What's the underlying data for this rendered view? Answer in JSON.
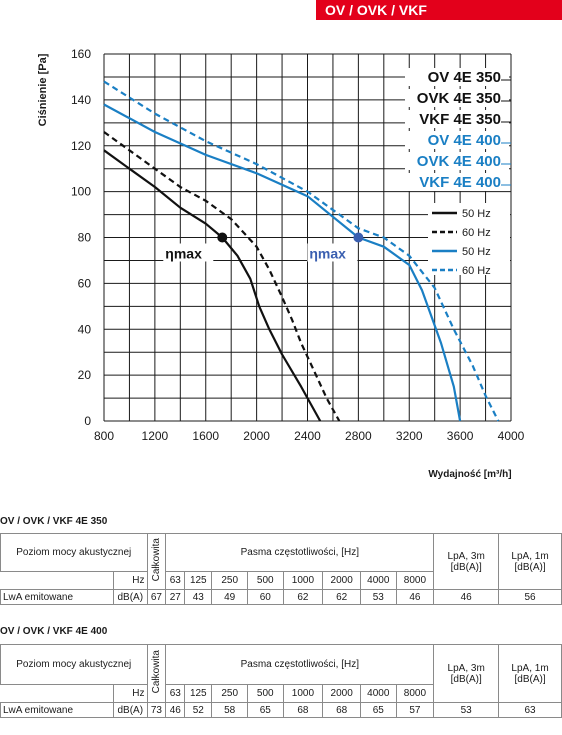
{
  "header": {
    "label": "OV / OVK / VKF"
  },
  "chart_data": {
    "type": "line",
    "xlabel": "Wydajność [m³/h]",
    "ylabel": "Ciśnienie [Pa]",
    "xlim": [
      800,
      4000
    ],
    "ylim": [
      0,
      160
    ],
    "x_ticks": [
      800,
      1200,
      1600,
      2000,
      2400,
      2800,
      3200,
      3600,
      4000
    ],
    "y_ticks": [
      0,
      20,
      40,
      60,
      80,
      100,
      120,
      140,
      160
    ],
    "grid": true,
    "model_labels": [
      {
        "text": "OV 4E 350",
        "color": "#111111"
      },
      {
        "text": "OVK 4E 350",
        "color": "#111111"
      },
      {
        "text": "VKF 4E 350",
        "color": "#111111"
      },
      {
        "text": "OV 4E 400",
        "color": "#1a7fc4"
      },
      {
        "text": "OVK 4E 400",
        "color": "#1a7fc4"
      },
      {
        "text": "VKF 4E 400",
        "color": "#1a7fc4"
      }
    ],
    "legend": {
      "placement": "right",
      "entries": [
        {
          "label": "50 Hz",
          "color": "#111111",
          "dashed": false
        },
        {
          "label": "60 Hz",
          "color": "#111111",
          "dashed": true
        },
        {
          "label": "50 Hz",
          "color": "#1a7fc4",
          "dashed": false
        },
        {
          "label": "60 Hz",
          "color": "#1a7fc4",
          "dashed": true
        }
      ]
    },
    "series": [
      {
        "color": "#111111",
        "dashed": false,
        "points": [
          [
            800,
            118
          ],
          [
            1000,
            110
          ],
          [
            1200,
            102
          ],
          [
            1400,
            93
          ],
          [
            1600,
            86
          ],
          [
            1730,
            80
          ],
          [
            1850,
            72
          ],
          [
            1950,
            62
          ],
          [
            2020,
            50
          ],
          [
            2100,
            40
          ],
          [
            2200,
            29
          ],
          [
            2350,
            15
          ],
          [
            2500,
            0
          ]
        ]
      },
      {
        "color": "#111111",
        "dashed": true,
        "points": [
          [
            800,
            126
          ],
          [
            1000,
            118
          ],
          [
            1200,
            110
          ],
          [
            1400,
            102
          ],
          [
            1600,
            96
          ],
          [
            1800,
            88
          ],
          [
            1900,
            82
          ],
          [
            2000,
            76
          ],
          [
            2100,
            66
          ],
          [
            2200,
            54
          ],
          [
            2280,
            44
          ],
          [
            2350,
            34
          ],
          [
            2450,
            22
          ],
          [
            2550,
            10
          ],
          [
            2650,
            0
          ]
        ]
      },
      {
        "color": "#1a7fc4",
        "dashed": false,
        "points": [
          [
            800,
            138
          ],
          [
            1200,
            126
          ],
          [
            1600,
            116
          ],
          [
            2000,
            108
          ],
          [
            2400,
            98
          ],
          [
            2800,
            80
          ],
          [
            3000,
            76
          ],
          [
            3200,
            68
          ],
          [
            3300,
            57
          ],
          [
            3450,
            34
          ],
          [
            3550,
            15
          ],
          [
            3600,
            0
          ]
        ]
      },
      {
        "color": "#1a7fc4",
        "dashed": true,
        "points": [
          [
            800,
            148
          ],
          [
            1200,
            134
          ],
          [
            1600,
            122
          ],
          [
            2000,
            112
          ],
          [
            2400,
            100
          ],
          [
            2800,
            84
          ],
          [
            3000,
            80
          ],
          [
            3200,
            72
          ],
          [
            3400,
            58
          ],
          [
            3550,
            40
          ],
          [
            3700,
            24
          ],
          [
            3800,
            11
          ],
          [
            3900,
            0
          ]
        ]
      }
    ],
    "markers": [
      {
        "x": 1730,
        "y": 80,
        "color": "#111111",
        "label": "ηmax"
      },
      {
        "x": 2800,
        "y": 80,
        "color": "#3a5fb0",
        "label": "ηmax"
      }
    ]
  },
  "tables": [
    {
      "title": "OV / OVK / VKF 4E 350",
      "header_label": "Poziom mocy akustycznej",
      "total_label": "Całkowita",
      "bands_label": "Pasma częstotliwości, [Hz]",
      "lpa3_label": "LpA, 3m [dB(A)]",
      "lpa1_label": "LpA, 1m [dB(A)]",
      "hz_label": "Hz",
      "freqs": [
        "63",
        "125",
        "250",
        "500",
        "1000",
        "2000",
        "4000",
        "8000"
      ],
      "row_label": "LwA emitowane",
      "unit": "dB(A)",
      "total": "67",
      "values": [
        "27",
        "43",
        "49",
        "60",
        "62",
        "62",
        "53",
        "46"
      ],
      "lpa3": "46",
      "lpa1": "56"
    },
    {
      "title": "OV / OVK / VKF 4E 400",
      "header_label": "Poziom mocy akustycznej",
      "total_label": "Całkowita",
      "bands_label": "Pasma częstotliwości, [Hz]",
      "lpa3_label": "LpA, 3m [dB(A)]",
      "lpa1_label": "LpA, 1m [dB(A)]",
      "hz_label": "Hz",
      "freqs": [
        "63",
        "125",
        "250",
        "500",
        "1000",
        "2000",
        "4000",
        "8000"
      ],
      "row_label": "LwA emitowane",
      "unit": "dB(A)",
      "total": "73",
      "values": [
        "46",
        "52",
        "58",
        "65",
        "68",
        "68",
        "65",
        "57"
      ],
      "lpa3": "53",
      "lpa1": "63"
    }
  ]
}
